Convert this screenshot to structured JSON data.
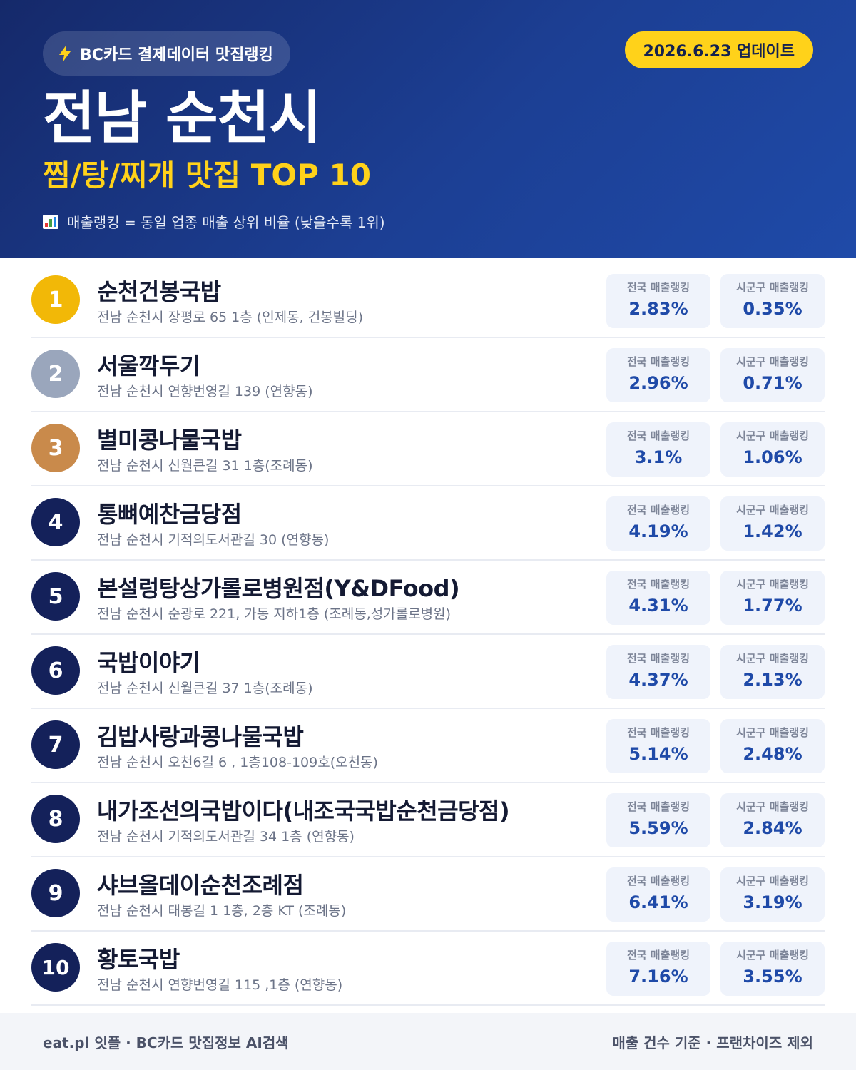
{
  "header": {
    "source_badge": "BC카드 결제데이터 맛집랭킹",
    "update_badge": "2026.6.23 업데이트",
    "city": "전남 순천시",
    "subtitle": "찜/탕/찌개 맛집 TOP 10",
    "legend": "매출랭킹 = 동일 업종 매출 상위 비율 (낮을수록 1위)",
    "icons": {
      "source": "lightning-icon",
      "legend": "bar-chart-icon"
    }
  },
  "colors": {
    "header_bg": "#1c3f94",
    "accent_yellow": "#ffd21a",
    "gold": "#f2b807",
    "silver": "#9aa6bc",
    "bronze": "#c98a4b",
    "navy": "#14215a",
    "value_blue": "#1f4aa8"
  },
  "stat_labels": {
    "national": "전국 매출랭킹",
    "local": "시군구 매출랭킹"
  },
  "restaurants": [
    {
      "rank": "1",
      "name": "순천건봉국밥",
      "address": "전남 순천시 장평로 65 1층 (인제동, 건봉빌딩)",
      "national": "2.83%",
      "local": "0.35%",
      "medal": "#f2b807"
    },
    {
      "rank": "2",
      "name": "서울깍두기",
      "address": "전남 순천시 연향번영길 139 (연향동)",
      "national": "2.96%",
      "local": "0.71%",
      "medal": "#9aa6bc"
    },
    {
      "rank": "3",
      "name": "별미콩나물국밥",
      "address": "전남 순천시 신월큰길 31 1층(조례동)",
      "national": "3.1%",
      "local": "1.06%",
      "medal": "#c98a4b"
    },
    {
      "rank": "4",
      "name": "통뼈예찬금당점",
      "address": "전남 순천시 기적의도서관길 30 (연향동)",
      "national": "4.19%",
      "local": "1.42%",
      "medal": "#14215a"
    },
    {
      "rank": "5",
      "name": "본설렁탕상가롤로병원점(Y&DFood)",
      "address": "전남 순천시 순광로 221, 가동 지하1층 (조례동,성가롤로병원)",
      "national": "4.31%",
      "local": "1.77%",
      "medal": "#14215a"
    },
    {
      "rank": "6",
      "name": "국밥이야기",
      "address": "전남 순천시 신월큰길 37 1층(조례동)",
      "national": "4.37%",
      "local": "2.13%",
      "medal": "#14215a"
    },
    {
      "rank": "7",
      "name": "김밥사랑과콩나물국밥",
      "address": "전남 순천시 오천6길 6 , 1층108-109호(오천동)",
      "national": "5.14%",
      "local": "2.48%",
      "medal": "#14215a"
    },
    {
      "rank": "8",
      "name": "내가조선의국밥이다(내조국국밥순천금당점)",
      "address": "전남 순천시 기적의도서관길 34 1층 (연향동)",
      "national": "5.59%",
      "local": "2.84%",
      "medal": "#14215a"
    },
    {
      "rank": "9",
      "name": "샤브올데이순천조례점",
      "address": "전남 순천시 태봉길 1 1층, 2층 KT (조례동)",
      "national": "6.41%",
      "local": "3.19%",
      "medal": "#14215a"
    },
    {
      "rank": "10",
      "name": "황토국밥",
      "address": "전남 순천시 연향번영길 115 ,1층 (연향동)",
      "national": "7.16%",
      "local": "3.55%",
      "medal": "#14215a"
    }
  ],
  "footer": {
    "left": "eat.pl 잇플 · BC카드 맛집정보 AI검색",
    "right": "매출 건수 기준 · 프랜차이즈 제외"
  }
}
